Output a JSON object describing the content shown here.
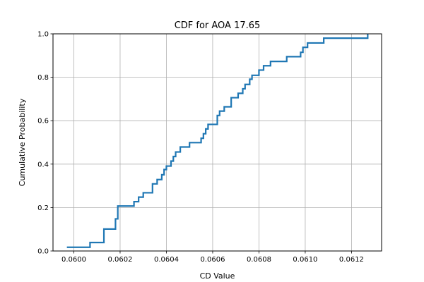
{
  "chart_data": {
    "type": "line",
    "title": "CDF for AOA 17.65",
    "xlabel": "CD Value",
    "ylabel": "Cumulative Probability",
    "xlim": [
      0.05991,
      0.06133
    ],
    "ylim": [
      0.0,
      1.0
    ],
    "grid": true,
    "x_ticks": [
      0.06,
      0.0602,
      0.0604,
      0.0606,
      0.0608,
      0.061,
      0.0612
    ],
    "x_tick_labels": [
      "0.0600",
      "0.0602",
      "0.0604",
      "0.0606",
      "0.0608",
      "0.0610",
      "0.0612"
    ],
    "y_ticks": [
      0.0,
      0.2,
      0.4,
      0.6,
      0.8,
      1.0
    ],
    "y_tick_labels": [
      "0.0",
      "0.2",
      "0.4",
      "0.6",
      "0.8",
      "1.0"
    ],
    "series": [
      {
        "color": "#1f77b4",
        "step": "post",
        "x": [
          0.05997,
          0.06007,
          0.06013,
          0.06013,
          0.06014,
          0.06018,
          0.06018,
          0.06019,
          0.06019,
          0.06019,
          0.06026,
          0.06028,
          0.0603,
          0.06034,
          0.06036,
          0.06038,
          0.06039,
          0.0604,
          0.06042,
          0.06043,
          0.06044,
          0.06046,
          0.0605,
          0.06055,
          0.06056,
          0.06057,
          0.06058,
          0.06062,
          0.06063,
          0.06065,
          0.06068,
          0.06071,
          0.06073,
          0.06074,
          0.06076,
          0.06077,
          0.0608,
          0.06082,
          0.06085,
          0.06092,
          0.06098,
          0.06099,
          0.06101,
          0.06108,
          0.06127,
          0.06127
        ],
        "y": [
          0.017,
          0.039,
          0.071,
          0.101,
          0.101,
          0.126,
          0.148,
          0.168,
          0.189,
          0.207,
          0.227,
          0.248,
          0.268,
          0.309,
          0.329,
          0.351,
          0.375,
          0.391,
          0.414,
          0.435,
          0.456,
          0.479,
          0.499,
          0.519,
          0.54,
          0.562,
          0.583,
          0.624,
          0.644,
          0.664,
          0.706,
          0.726,
          0.747,
          0.767,
          0.791,
          0.809,
          0.833,
          0.853,
          0.873,
          0.895,
          0.915,
          0.938,
          0.958,
          0.98,
          0.98,
          1.0
        ]
      }
    ]
  }
}
